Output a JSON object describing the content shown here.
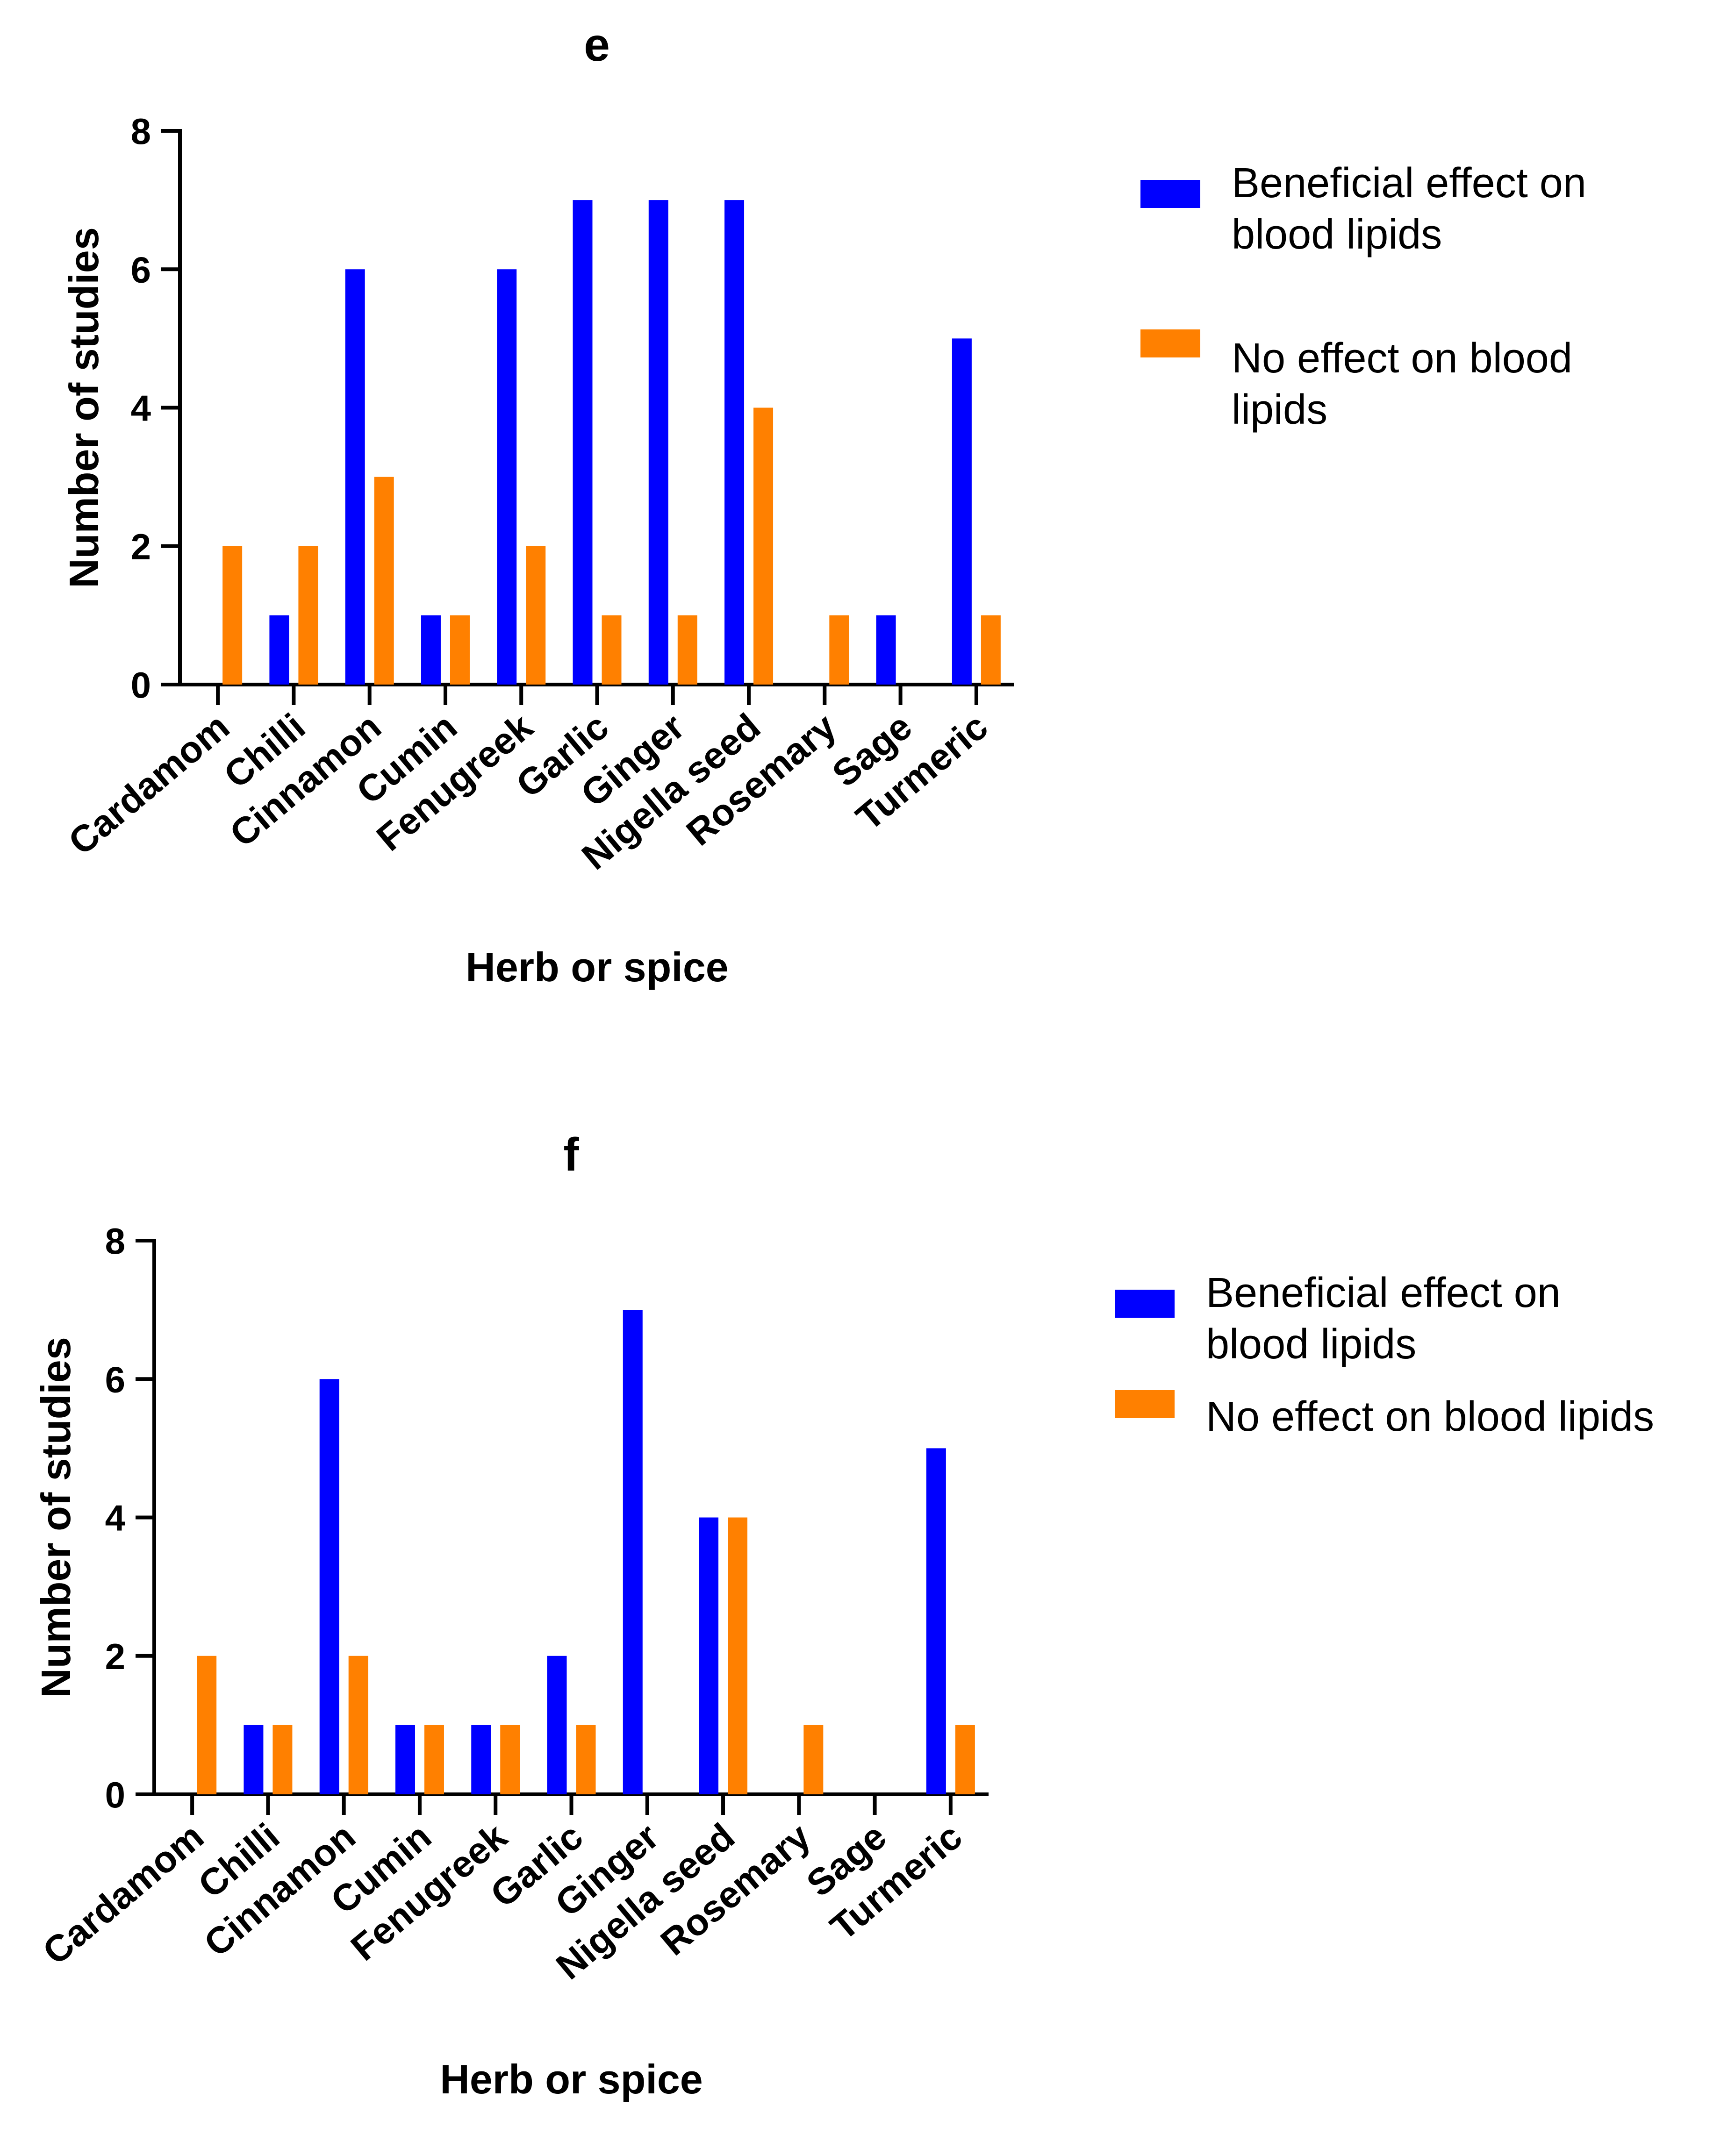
{
  "colors": {
    "beneficial": "#0000FF",
    "no_effect": "#FF8000"
  },
  "chart_data": [
    {
      "type": "bar",
      "title": "e",
      "xlabel": "Herb or spice",
      "ylabel": "Number of studies",
      "ylim": [
        0,
        8
      ],
      "yticks": [
        "0",
        "2",
        "4",
        "6",
        "8"
      ],
      "categories": [
        "Cardamom",
        "Chilli",
        "Cinnamon",
        "Cumin",
        "Fenugreek",
        "Garlic",
        "Ginger",
        "Nigella seed",
        "Rosemary",
        "Sage",
        "Turmeric"
      ],
      "series": [
        {
          "name": "Beneficial effect on blood lipids",
          "legend_lines": [
            "Beneficial effect on",
            "blood lipids"
          ],
          "values": [
            0,
            1,
            6,
            1,
            6,
            7,
            7,
            7,
            0,
            1,
            5
          ]
        },
        {
          "name": "No effect on blood lipids",
          "legend_lines": [
            "No effect on blood",
            "lipids"
          ],
          "values": [
            2,
            2,
            3,
            1,
            2,
            1,
            1,
            4,
            1,
            0,
            1
          ]
        }
      ],
      "legend": "right",
      "grid": false
    },
    {
      "type": "bar",
      "title": "f",
      "xlabel": "Herb or spice",
      "ylabel": "Number of studies",
      "ylim": [
        0,
        8
      ],
      "yticks": [
        "0",
        "2",
        "4",
        "6",
        "8"
      ],
      "categories": [
        "Cardamom",
        "Chilli",
        "Cinnamon",
        "Cumin",
        "Fenugreek",
        "Garlic",
        "Ginger",
        "Nigella seed",
        "Rosemary",
        "Sage",
        "Turmeric"
      ],
      "series": [
        {
          "name": "Beneficial effect on blood lipids",
          "legend_lines": [
            "Beneficial effect on",
            "blood lipids"
          ],
          "values": [
            0,
            1,
            6,
            1,
            1,
            2,
            7,
            4,
            0,
            0,
            5
          ]
        },
        {
          "name": "No effect on blood lipids",
          "legend_lines": [
            "No effect on blood lipids"
          ],
          "values": [
            2,
            1,
            2,
            1,
            1,
            1,
            0,
            4,
            1,
            0,
            1
          ]
        }
      ],
      "legend": "right",
      "grid": false
    }
  ]
}
